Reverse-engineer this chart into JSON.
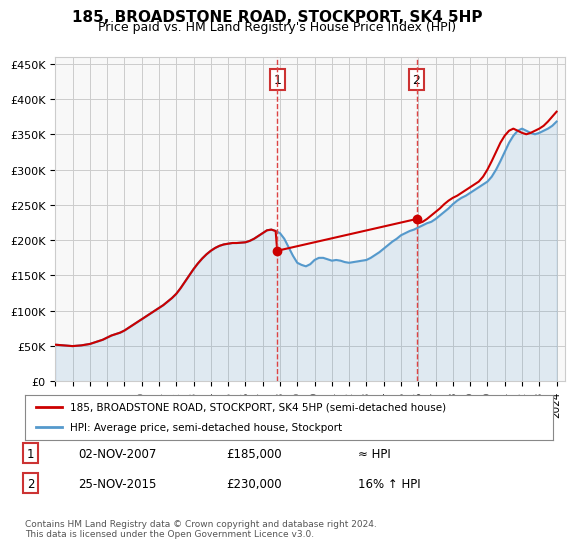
{
  "title": "185, BROADSTONE ROAD, STOCKPORT, SK4 5HP",
  "subtitle": "Price paid vs. HM Land Registry's House Price Index (HPI)",
  "ylabel_ticks": [
    "£0",
    "£50K",
    "£100K",
    "£150K",
    "£200K",
    "£250K",
    "£300K",
    "£350K",
    "£400K",
    "£450K"
  ],
  "ytick_values": [
    0,
    50000,
    100000,
    150000,
    200000,
    250000,
    300000,
    350000,
    400000,
    450000
  ],
  "ylim": [
    0,
    460000
  ],
  "xlim_start": 1995.0,
  "xlim_end": 2024.5,
  "xtick_years": [
    1995,
    1996,
    1997,
    1998,
    1999,
    2000,
    2001,
    2002,
    2003,
    2004,
    2005,
    2006,
    2007,
    2008,
    2009,
    2010,
    2011,
    2012,
    2013,
    2014,
    2015,
    2016,
    2017,
    2018,
    2019,
    2020,
    2021,
    2022,
    2023,
    2024
  ],
  "sale1_x": 2007.84,
  "sale1_y": 185000,
  "sale1_label": "1",
  "sale1_date": "02-NOV-2007",
  "sale1_price": "£185,000",
  "sale1_vs_hpi": "≈ HPI",
  "sale2_x": 2015.9,
  "sale2_y": 230000,
  "sale2_label": "2",
  "sale2_date": "25-NOV-2015",
  "sale2_price": "£230,000",
  "sale2_vs_hpi": "16% ↑ HPI",
  "vline1_x": 2007.84,
  "vline2_x": 2015.9,
  "legend_line1": "185, BROADSTONE ROAD, STOCKPORT, SK4 5HP (semi-detached house)",
  "legend_line2": "HPI: Average price, semi-detached house, Stockport",
  "footer": "Contains HM Land Registry data © Crown copyright and database right 2024.\nThis data is licensed under the Open Government Licence v3.0.",
  "line_color_red": "#cc0000",
  "line_color_blue": "#5599cc",
  "vline_color": "#dd4444",
  "background_color": "#f8f8f8",
  "hpi_years": [
    1995.0,
    1995.25,
    1995.5,
    1995.75,
    1996.0,
    1996.25,
    1996.5,
    1996.75,
    1997.0,
    1997.25,
    1997.5,
    1997.75,
    1998.0,
    1998.25,
    1998.5,
    1998.75,
    1999.0,
    1999.25,
    1999.5,
    1999.75,
    2000.0,
    2000.25,
    2000.5,
    2000.75,
    2001.0,
    2001.25,
    2001.5,
    2001.75,
    2002.0,
    2002.25,
    2002.5,
    2002.75,
    2003.0,
    2003.25,
    2003.5,
    2003.75,
    2004.0,
    2004.25,
    2004.5,
    2004.75,
    2005.0,
    2005.25,
    2005.5,
    2005.75,
    2006.0,
    2006.25,
    2006.5,
    2006.75,
    2007.0,
    2007.25,
    2007.5,
    2007.75,
    2008.0,
    2008.25,
    2008.5,
    2008.75,
    2009.0,
    2009.25,
    2009.5,
    2009.75,
    2010.0,
    2010.25,
    2010.5,
    2010.75,
    2011.0,
    2011.25,
    2011.5,
    2011.75,
    2012.0,
    2012.25,
    2012.5,
    2012.75,
    2013.0,
    2013.25,
    2013.5,
    2013.75,
    2014.0,
    2014.25,
    2014.5,
    2014.75,
    2015.0,
    2015.25,
    2015.5,
    2015.75,
    2016.0,
    2016.25,
    2016.5,
    2016.75,
    2017.0,
    2017.25,
    2017.5,
    2017.75,
    2018.0,
    2018.25,
    2018.5,
    2018.75,
    2019.0,
    2019.25,
    2019.5,
    2019.75,
    2020.0,
    2020.25,
    2020.5,
    2020.75,
    2021.0,
    2021.25,
    2021.5,
    2021.75,
    2022.0,
    2022.25,
    2022.5,
    2022.75,
    2023.0,
    2023.25,
    2023.5,
    2023.75,
    2024.0
  ],
  "hpi_values": [
    52000,
    51500,
    51000,
    50500,
    50000,
    50500,
    51000,
    52000,
    53000,
    55000,
    57000,
    59000,
    62000,
    65000,
    67000,
    69000,
    72000,
    76000,
    80000,
    84000,
    88000,
    92000,
    96000,
    100000,
    104000,
    108000,
    113000,
    118000,
    124000,
    132000,
    141000,
    150000,
    159000,
    167000,
    174000,
    180000,
    185000,
    189000,
    192000,
    194000,
    195000,
    196000,
    196000,
    196500,
    197000,
    199000,
    202000,
    206000,
    210000,
    214000,
    215000,
    213000,
    210000,
    202000,
    190000,
    178000,
    168000,
    165000,
    163000,
    166000,
    172000,
    175000,
    175000,
    173000,
    171000,
    172000,
    171000,
    169000,
    168000,
    169000,
    170000,
    171000,
    172000,
    175000,
    179000,
    183000,
    188000,
    193000,
    198000,
    202000,
    207000,
    210000,
    213000,
    215000,
    218000,
    221000,
    224000,
    226000,
    230000,
    235000,
    240000,
    245000,
    251000,
    256000,
    260000,
    263000,
    267000,
    271000,
    275000,
    279000,
    283000,
    290000,
    300000,
    312000,
    325000,
    338000,
    348000,
    355000,
    358000,
    355000,
    352000,
    350000,
    352000,
    355000,
    358000,
    362000,
    368000
  ],
  "red_years": [
    1995.0,
    1995.25,
    1995.5,
    1995.75,
    1996.0,
    1996.25,
    1996.5,
    1996.75,
    1997.0,
    1997.25,
    1997.5,
    1997.75,
    1998.0,
    1998.25,
    1998.5,
    1998.75,
    1999.0,
    1999.25,
    1999.5,
    1999.75,
    2000.0,
    2000.25,
    2000.5,
    2000.75,
    2001.0,
    2001.25,
    2001.5,
    2001.75,
    2002.0,
    2002.25,
    2002.5,
    2002.75,
    2003.0,
    2003.25,
    2003.5,
    2003.75,
    2004.0,
    2004.25,
    2004.5,
    2004.75,
    2005.0,
    2005.25,
    2005.5,
    2005.75,
    2006.0,
    2006.25,
    2006.5,
    2006.75,
    2007.0,
    2007.25,
    2007.5,
    2007.75,
    2007.84,
    2015.9,
    2016.0,
    2016.25,
    2016.5,
    2016.75,
    2017.0,
    2017.25,
    2017.5,
    2017.75,
    2018.0,
    2018.25,
    2018.5,
    2018.75,
    2019.0,
    2019.25,
    2019.5,
    2019.75,
    2020.0,
    2020.25,
    2020.5,
    2020.75,
    2021.0,
    2021.25,
    2021.5,
    2021.75,
    2022.0,
    2022.25,
    2022.5,
    2022.75,
    2023.0,
    2023.25,
    2023.5,
    2023.75,
    2024.0
  ],
  "red_values": [
    52000,
    51500,
    51000,
    50500,
    50000,
    50500,
    51000,
    52000,
    53000,
    55000,
    57000,
    59000,
    62000,
    65000,
    67000,
    69000,
    72000,
    76000,
    80000,
    84000,
    88000,
    92000,
    96000,
    100000,
    104000,
    108000,
    113000,
    118000,
    124000,
    132000,
    141000,
    150000,
    159000,
    167000,
    174000,
    180000,
    185000,
    189000,
    192000,
    194000,
    195000,
    196000,
    196000,
    196500,
    197000,
    199000,
    202000,
    206000,
    210000,
    214000,
    215000,
    213000,
    185000,
    230000,
    224000,
    226000,
    230000,
    235000,
    240000,
    245000,
    251000,
    256000,
    260000,
    263000,
    267000,
    271000,
    275000,
    279000,
    283000,
    290000,
    300000,
    312000,
    325000,
    338000,
    348000,
    355000,
    358000,
    355000,
    352000,
    350000,
    352000,
    355000,
    358000,
    362000,
    368000,
    375000,
    382000
  ]
}
